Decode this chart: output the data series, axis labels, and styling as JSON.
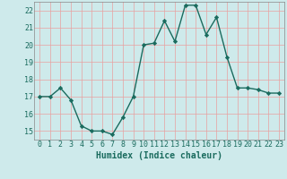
{
  "x": [
    0,
    1,
    2,
    3,
    4,
    5,
    6,
    7,
    8,
    9,
    10,
    11,
    12,
    13,
    14,
    15,
    16,
    17,
    18,
    19,
    20,
    21,
    22,
    23
  ],
  "y": [
    17,
    17,
    17.5,
    16.8,
    15.3,
    15.0,
    15.0,
    14.8,
    15.8,
    17.0,
    20.0,
    20.1,
    21.4,
    20.2,
    22.3,
    22.3,
    20.6,
    21.6,
    19.3,
    17.5,
    17.5,
    17.4,
    17.2,
    17.2
  ],
  "line_color": "#1a6b5e",
  "marker": "D",
  "marker_size": 2.2,
  "bg_color": "#ceeaeb",
  "grid_color": "#e8a0a0",
  "xlabel": "Humidex (Indice chaleur)",
  "xlim": [
    -0.5,
    23.5
  ],
  "ylim": [
    14.5,
    22.5
  ],
  "yticks": [
    15,
    16,
    17,
    18,
    19,
    20,
    21,
    22
  ],
  "xticks": [
    0,
    1,
    2,
    3,
    4,
    5,
    6,
    7,
    8,
    9,
    10,
    11,
    12,
    13,
    14,
    15,
    16,
    17,
    18,
    19,
    20,
    21,
    22,
    23
  ],
  "xlabel_fontsize": 7.0,
  "tick_fontsize": 6.0,
  "line_width": 1.0
}
